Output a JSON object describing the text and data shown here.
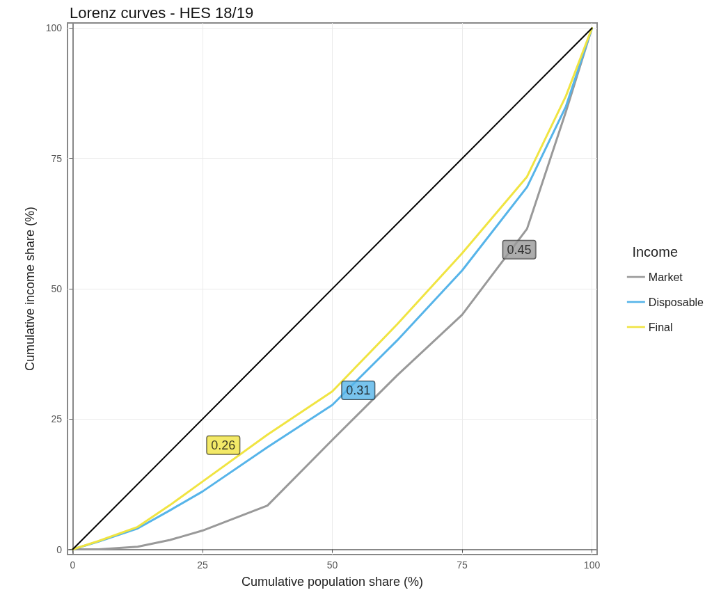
{
  "chart_data": {
    "type": "line",
    "title": "Lorenz curves - HES 18/19",
    "xlabel": "Cumulative population share (%)",
    "ylabel": "Cumulative income share (%)",
    "legend_title": "Income",
    "x": [
      0,
      5,
      12.5,
      18.75,
      25,
      37.5,
      50,
      62.5,
      75,
      87.5,
      95,
      100
    ],
    "series": [
      {
        "name": "Market",
        "color": "#999999",
        "values": [
          0,
          0,
          0.5,
          1.8,
          3.6,
          8.4,
          21,
          33.4,
          45,
          61.5,
          84,
          100
        ]
      },
      {
        "name": "Disposable",
        "color": "#56b4e9",
        "values": [
          0,
          1.5,
          4,
          7.5,
          11.1,
          19.6,
          27.7,
          40.1,
          53.5,
          69.5,
          85,
          100
        ]
      },
      {
        "name": "Final",
        "color": "#f0e442",
        "values": [
          0,
          1.6,
          4.3,
          8.5,
          13,
          22,
          30.3,
          43.2,
          56.8,
          71.5,
          87,
          100
        ]
      },
      {
        "color": "#000000",
        "x": [
          0,
          100
        ],
        "values": [
          0,
          100
        ]
      }
    ],
    "annotations": [
      "0.45",
      "0.31",
      "0.26"
    ],
    "xlim": [
      -1,
      101
    ],
    "ylim": [
      -1,
      101
    ],
    "xticks": [
      0,
      25,
      50,
      75,
      100
    ],
    "yticks": [
      0,
      25,
      50,
      75,
      100
    ],
    "grid": true,
    "legend": "right",
    "marker": "none",
    "line_style": "solid"
  }
}
